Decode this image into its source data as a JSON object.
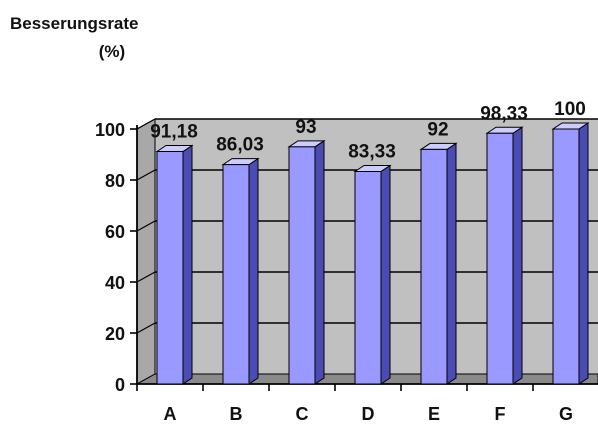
{
  "chart_data": {
    "type": "bar",
    "title": "",
    "xlabel": "",
    "ylabel": [
      "Besserungsrate",
      "(%)"
    ],
    "categories": [
      "A",
      "B",
      "C",
      "D",
      "E",
      "F",
      "G"
    ],
    "values": [
      91.18,
      86.03,
      93,
      83.33,
      92,
      98.33,
      100
    ],
    "value_labels": [
      "91,18",
      "86,03",
      "93",
      "83,33",
      "92",
      "98,33",
      "100"
    ],
    "ylim": [
      0,
      100
    ],
    "yticks": [
      0,
      20,
      40,
      60,
      80,
      100
    ],
    "grid": true,
    "legend": "none",
    "style": "3d-column",
    "colors": {
      "bar_front": "#9999ff",
      "bar_top": "#ccccff",
      "bar_side": "#4b4bb4",
      "plot_back": "#c0c0c0",
      "plot_floor": "#8a8a8a",
      "grid": "#000000"
    }
  }
}
